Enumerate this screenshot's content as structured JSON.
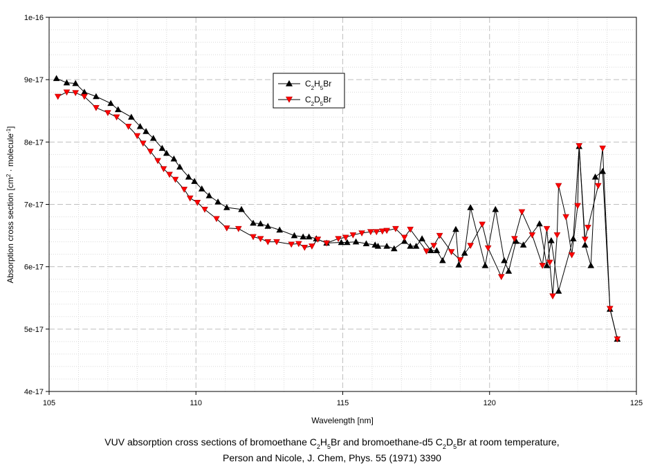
{
  "chart_data": {
    "type": "line",
    "title": "",
    "xlabel": "Wavelength [nm]",
    "ylabel": "Absorption cross section [cm² · molecule⁻¹]",
    "xlim": [
      105,
      125
    ],
    "ylim": [
      4e-17,
      1e-16
    ],
    "x_ticks": [
      105,
      110,
      115,
      120,
      125
    ],
    "x_tick_labels": [
      "105",
      "110",
      "115",
      "120",
      "125"
    ],
    "y_ticks": [
      4e-17,
      5e-17,
      6e-17,
      7e-17,
      8e-17,
      9e-17,
      1e-16
    ],
    "y_tick_labels": [
      "4e-17",
      "5e-17",
      "6e-17",
      "7e-17",
      "8e-17",
      "9e-17",
      "1e-16"
    ],
    "grid": true,
    "legend_position": "top-center",
    "series": [
      {
        "name": "C2H5Br",
        "legend_base": "C",
        "legend_s1": "2",
        "legend_mid": "H",
        "legend_s2": "5",
        "legend_end": "Br",
        "color": "#000000",
        "marker": "triangle-up",
        "points": [
          [
            105.25,
            9.02e-17
          ],
          [
            105.6,
            8.95e-17
          ],
          [
            105.9,
            8.94e-17
          ],
          [
            106.2,
            8.8e-17
          ],
          [
            106.6,
            8.73e-17
          ],
          [
            107.1,
            8.62e-17
          ],
          [
            107.35,
            8.52e-17
          ],
          [
            107.8,
            8.4e-17
          ],
          [
            108.1,
            8.25e-17
          ],
          [
            108.3,
            8.17e-17
          ],
          [
            108.55,
            8.06e-17
          ],
          [
            108.85,
            7.9e-17
          ],
          [
            109.0,
            7.82e-17
          ],
          [
            109.25,
            7.73e-17
          ],
          [
            109.45,
            7.6e-17
          ],
          [
            109.75,
            7.44e-17
          ],
          [
            109.95,
            7.37e-17
          ],
          [
            110.2,
            7.25e-17
          ],
          [
            110.45,
            7.14e-17
          ],
          [
            110.75,
            7.04e-17
          ],
          [
            111.05,
            6.95e-17
          ],
          [
            111.55,
            6.92e-17
          ],
          [
            111.95,
            6.7e-17
          ],
          [
            112.2,
            6.69e-17
          ],
          [
            112.45,
            6.65e-17
          ],
          [
            112.85,
            6.59e-17
          ],
          [
            113.35,
            6.5e-17
          ],
          [
            113.65,
            6.48e-17
          ],
          [
            113.85,
            6.48e-17
          ],
          [
            114.1,
            6.45e-17
          ],
          [
            114.45,
            6.38e-17
          ],
          [
            114.95,
            6.39e-17
          ],
          [
            115.15,
            6.39e-17
          ],
          [
            115.45,
            6.4e-17
          ],
          [
            115.8,
            6.37e-17
          ],
          [
            116.1,
            6.35e-17
          ],
          [
            116.2,
            6.33e-17
          ],
          [
            116.5,
            6.33e-17
          ],
          [
            116.75,
            6.29e-17
          ],
          [
            117.1,
            6.41e-17
          ],
          [
            117.3,
            6.33e-17
          ],
          [
            117.5,
            6.33e-17
          ],
          [
            117.7,
            6.45e-17
          ],
          [
            118.0,
            6.26e-17
          ],
          [
            118.2,
            6.26e-17
          ],
          [
            118.4,
            6.1e-17
          ],
          [
            118.85,
            6.6e-17
          ],
          [
            118.95,
            6.03e-17
          ],
          [
            119.15,
            6.22e-17
          ],
          [
            119.35,
            6.95e-17
          ],
          [
            119.85,
            6.02e-17
          ],
          [
            120.2,
            6.92e-17
          ],
          [
            120.5,
            6.1e-17
          ],
          [
            120.65,
            5.93e-17
          ],
          [
            120.9,
            6.41e-17
          ],
          [
            121.15,
            6.35e-17
          ],
          [
            121.7,
            6.69e-17
          ],
          [
            121.95,
            6.02e-17
          ],
          [
            122.1,
            6.42e-17
          ],
          [
            122.35,
            5.61e-17
          ],
          [
            122.85,
            6.45e-17
          ],
          [
            123.05,
            7.93e-17
          ],
          [
            123.25,
            6.35e-17
          ],
          [
            123.45,
            6.02e-17
          ],
          [
            123.6,
            7.44e-17
          ],
          [
            123.85,
            7.53e-17
          ],
          [
            124.1,
            5.32e-17
          ],
          [
            124.35,
            4.84e-17
          ]
        ]
      },
      {
        "name": "C2D5Br",
        "legend_base": "C",
        "legend_s1": "2",
        "legend_mid": "D",
        "legend_s2": "5",
        "legend_end": "Br",
        "color": "#ff0000",
        "marker": "triangle-down",
        "points": [
          [
            105.3,
            8.73e-17
          ],
          [
            105.6,
            8.8e-17
          ],
          [
            105.9,
            8.79e-17
          ],
          [
            106.2,
            8.73e-17
          ],
          [
            106.6,
            8.55e-17
          ],
          [
            107.0,
            8.47e-17
          ],
          [
            107.3,
            8.4e-17
          ],
          [
            107.7,
            8.25e-17
          ],
          [
            108.0,
            8.1e-17
          ],
          [
            108.2,
            7.98e-17
          ],
          [
            108.45,
            7.85e-17
          ],
          [
            108.7,
            7.7e-17
          ],
          [
            108.9,
            7.57e-17
          ],
          [
            109.1,
            7.48e-17
          ],
          [
            109.3,
            7.4e-17
          ],
          [
            109.6,
            7.24e-17
          ],
          [
            109.8,
            7.1e-17
          ],
          [
            110.05,
            7.03e-17
          ],
          [
            110.3,
            6.92e-17
          ],
          [
            110.7,
            6.77e-17
          ],
          [
            111.05,
            6.62e-17
          ],
          [
            111.45,
            6.61e-17
          ],
          [
            111.95,
            6.48e-17
          ],
          [
            112.2,
            6.45e-17
          ],
          [
            112.45,
            6.4e-17
          ],
          [
            112.75,
            6.4e-17
          ],
          [
            113.25,
            6.36e-17
          ],
          [
            113.5,
            6.37e-17
          ],
          [
            113.7,
            6.31e-17
          ],
          [
            113.95,
            6.33e-17
          ],
          [
            114.15,
            6.44e-17
          ],
          [
            114.45,
            6.38e-17
          ],
          [
            114.85,
            6.45e-17
          ],
          [
            115.1,
            6.47e-17
          ],
          [
            115.35,
            6.51e-17
          ],
          [
            115.65,
            6.54e-17
          ],
          [
            115.95,
            6.56e-17
          ],
          [
            116.15,
            6.56e-17
          ],
          [
            116.35,
            6.57e-17
          ],
          [
            116.5,
            6.58e-17
          ],
          [
            116.8,
            6.61e-17
          ],
          [
            117.1,
            6.47e-17
          ],
          [
            117.3,
            6.6e-17
          ],
          [
            117.85,
            6.25e-17
          ],
          [
            118.1,
            6.34e-17
          ],
          [
            118.3,
            6.5e-17
          ],
          [
            118.7,
            6.24e-17
          ],
          [
            119.0,
            6.11e-17
          ],
          [
            119.35,
            6.34e-17
          ],
          [
            119.75,
            6.68e-17
          ],
          [
            119.95,
            6.3e-17
          ],
          [
            120.4,
            5.84e-17
          ],
          [
            120.85,
            6.45e-17
          ],
          [
            121.1,
            6.88e-17
          ],
          [
            121.45,
            6.51e-17
          ],
          [
            121.8,
            6.02e-17
          ],
          [
            121.95,
            6.61e-17
          ],
          [
            122.05,
            6.07e-17
          ],
          [
            122.15,
            5.53e-17
          ],
          [
            122.3,
            6.51e-17
          ],
          [
            122.35,
            7.3e-17
          ],
          [
            122.6,
            6.8e-17
          ],
          [
            122.8,
            6.19e-17
          ],
          [
            123.0,
            6.98e-17
          ],
          [
            123.05,
            7.94e-17
          ],
          [
            123.25,
            6.44e-17
          ],
          [
            123.35,
            6.63e-17
          ],
          [
            123.7,
            7.3e-17
          ],
          [
            123.85,
            7.9e-17
          ],
          [
            124.1,
            5.33e-17
          ],
          [
            124.35,
            4.84e-17
          ]
        ]
      }
    ],
    "caption_line1_pre": "VUV absorption cross sections of bromoethane C",
    "caption_s1": "2",
    "caption_mid1": "H",
    "caption_s2": "5",
    "caption_mid2": "Br and bromoethane-d5 C",
    "caption_s3": "2",
    "caption_mid3": "D",
    "caption_s4": "5",
    "caption_end": "Br at room temperature,",
    "caption_line2": "Person and Nicole, J. Chem, Phys. 55 (1971) 3390"
  }
}
